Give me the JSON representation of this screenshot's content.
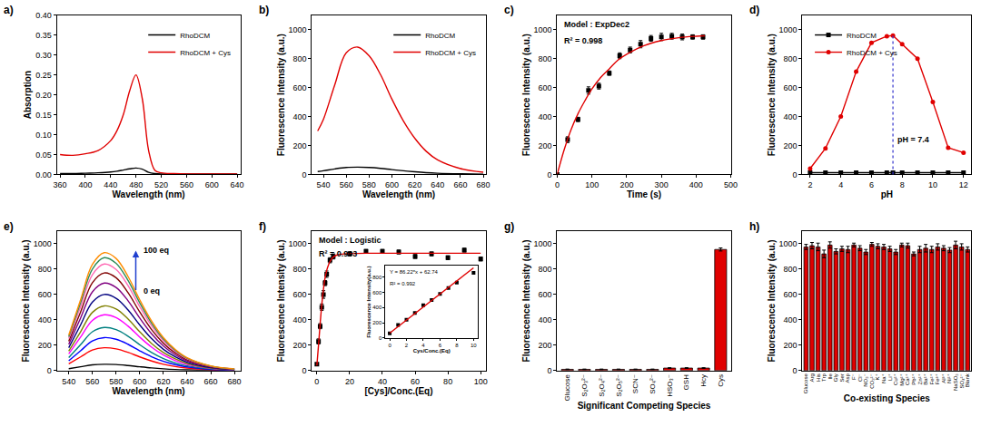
{
  "chart_data": [
    {
      "label": "a)",
      "type": "line",
      "x_label": "Wavelength (nm)",
      "y_label": "Absorption",
      "x": [
        360,
        380,
        400,
        420,
        440,
        450,
        460,
        470,
        480,
        490,
        500,
        510,
        520,
        540,
        560,
        600,
        640
      ],
      "series": [
        {
          "name": "RhoDCM",
          "color": "#000000",
          "values": [
            0.002,
            0.002,
            0.003,
            0.004,
            0.006,
            0.008,
            0.011,
            0.014,
            0.016,
            0.013,
            0.005,
            0.002,
            0.001,
            0.001,
            0.001,
            0.001,
            0.001
          ]
        },
        {
          "name": "RhoDCM + Cys",
          "color": "#e00000",
          "values": [
            0.05,
            0.048,
            0.052,
            0.06,
            0.085,
            0.11,
            0.15,
            0.21,
            0.25,
            0.19,
            0.06,
            0.01,
            0.004,
            0.002,
            0.001,
            0.001,
            0.001
          ]
        }
      ],
      "xlim": [
        355,
        645
      ],
      "xticks": [
        360,
        400,
        440,
        480,
        520,
        560,
        600,
        640
      ],
      "ylim": [
        0,
        0.4
      ],
      "yticks": [
        {
          "value": 0,
          "label": "0.00"
        },
        {
          "value": 0.05,
          "label": "0.05"
        },
        {
          "value": 0.1,
          "label": "0.10"
        },
        {
          "value": 0.15,
          "label": "0.15"
        },
        {
          "value": 0.2,
          "label": "0.20"
        },
        {
          "value": 0.25,
          "label": "0.25"
        },
        {
          "value": 0.3,
          "label": "0.30"
        },
        {
          "value": 0.35,
          "label": "0.35"
        },
        {
          "value": 0.4,
          "label": "0.40"
        }
      ],
      "legend": "upper right",
      "grid": false
    },
    {
      "label": "b)",
      "type": "line",
      "x_label": "Wavelength (nm)",
      "y_label": "Fluorescence Intensity (a.u.)",
      "x": [
        535,
        540,
        550,
        560,
        570,
        580,
        590,
        600,
        610,
        620,
        630,
        640,
        660,
        680
      ],
      "series": [
        {
          "name": "RhoDCM",
          "color": "#000000",
          "values": [
            20,
            25,
            38,
            48,
            50,
            48,
            42,
            33,
            25,
            18,
            12,
            8,
            4,
            2
          ]
        },
        {
          "name": "RhoDCM + Cys",
          "color": "#e00000",
          "values": [
            300,
            380,
            620,
            840,
            880,
            820,
            690,
            520,
            370,
            250,
            160,
            100,
            40,
            15
          ]
        }
      ],
      "xlim": [
        530,
        682
      ],
      "xticks": [
        540,
        560,
        580,
        600,
        620,
        640,
        660,
        680
      ],
      "ylim": [
        0,
        1100
      ],
      "yticks": [
        0,
        200,
        400,
        600,
        800,
        1000
      ],
      "legend": "upper right",
      "grid": false
    },
    {
      "label": "c)",
      "type": "scatter",
      "x_label": "Time (s)",
      "y_label": "Fluorescence Intensity (a.u.)",
      "annotations": [
        "Model : ExpDec2",
        "R² = 0.998"
      ],
      "series": [
        {
          "type": "scatter",
          "color": "#000000",
          "marker": "square",
          "x": [
            0,
            30,
            60,
            90,
            120,
            150,
            180,
            210,
            240,
            270,
            300,
            330,
            360,
            390,
            420
          ],
          "values": [
            0,
            240,
            380,
            580,
            610,
            700,
            820,
            860,
            900,
            940,
            950,
            955,
            950,
            950,
            950
          ],
          "errors": [
            5,
            20,
            15,
            25,
            20,
            15,
            20,
            20,
            25,
            20,
            25,
            20,
            20,
            15,
            15
          ]
        },
        {
          "type": "line",
          "color": "#e00000",
          "x": [
            0,
            20,
            40,
            60,
            80,
            100,
            125,
            150,
            175,
            200,
            250,
            300,
            350,
            400,
            425
          ],
          "values": [
            0,
            170,
            310,
            420,
            510,
            590,
            670,
            730,
            790,
            830,
            890,
            925,
            945,
            955,
            958
          ]
        }
      ],
      "xlim": [
        0,
        500
      ],
      "xticks": [
        0,
        100,
        200,
        300,
        400,
        500
      ],
      "ylim": [
        0,
        1100
      ],
      "yticks": [
        0,
        200,
        400,
        600,
        800,
        1000
      ],
      "grid": false
    },
    {
      "label": "d)",
      "type": "line",
      "x_label": "pH",
      "y_label": "Fluorescence Intensity (a.u.)",
      "x": [
        2,
        3,
        4,
        5,
        6,
        7,
        7.4,
        8,
        9,
        10,
        11,
        12
      ],
      "series": [
        {
          "name": "RhoDCM",
          "color": "#000000",
          "marker": "square",
          "line_style": "solid",
          "values": [
            12,
            12,
            12,
            12,
            12,
            12,
            12,
            12,
            12,
            12,
            12,
            12
          ]
        },
        {
          "name": "RhoDCM + Cys",
          "color": "#e00000",
          "marker": "circle",
          "line_style": "solid",
          "values": [
            40,
            180,
            400,
            710,
            910,
            955,
            960,
            900,
            800,
            500,
            185,
            150
          ]
        }
      ],
      "vline": 7.4,
      "vline_color": "#3333cc",
      "annotations": [
        "pH = 7.4"
      ],
      "xlim": [
        1.5,
        12.5
      ],
      "xticks": [
        2,
        4,
        6,
        8,
        10,
        12
      ],
      "ylim": [
        0,
        1100
      ],
      "yticks": [
        0,
        200,
        400,
        600,
        800,
        1000
      ],
      "legend": "upper left",
      "grid": false
    },
    {
      "label": "e)",
      "type": "line",
      "x_label": "Wavelength (nm)",
      "y_label": "Fluorescence Intensity (a.u.)",
      "arrow_labels": {
        "from": "0 eq",
        "to": "100 eq"
      },
      "arrow_color": "#1f3fcf",
      "x": [
        540,
        550,
        560,
        570,
        580,
        590,
        600,
        610,
        620,
        630,
        640,
        660,
        680
      ],
      "series": [
        {
          "color": "#000000",
          "values": [
            15,
            30,
            45,
            50,
            48,
            40,
            30,
            21,
            14,
            9,
            6,
            2,
            1
          ]
        },
        {
          "color": "#ff0000",
          "values": [
            54,
            108,
            162,
            180,
            171,
            144,
            108,
            76,
            50,
            32,
            20,
            7,
            3
          ]
        },
        {
          "color": "#0000ff",
          "values": [
            78,
            156,
            234,
            260,
            247,
            208,
            156,
            109,
            73,
            47,
            29,
            10,
            4
          ]
        },
        {
          "color": "#008080",
          "values": [
            102,
            204,
            306,
            340,
            323,
            272,
            204,
            143,
            95,
            61,
            37,
            14,
            5
          ]
        },
        {
          "color": "#ff00ff",
          "values": [
            132,
            264,
            396,
            440,
            418,
            352,
            264,
            185,
            123,
            79,
            48,
            18,
            7
          ]
        },
        {
          "color": "#808000",
          "values": [
            153,
            306,
            459,
            510,
            485,
            408,
            306,
            214,
            143,
            92,
            56,
            20,
            8
          ]
        },
        {
          "color": "#000080",
          "values": [
            180,
            360,
            540,
            600,
            570,
            480,
            360,
            252,
            168,
            108,
            66,
            24,
            9
          ]
        },
        {
          "color": "#800080",
          "values": [
            207,
            414,
            621,
            690,
            656,
            552,
            414,
            290,
            193,
            124,
            76,
            28,
            10
          ]
        },
        {
          "color": "#800000",
          "values": [
            231,
            462,
            693,
            770,
            732,
            616,
            462,
            323,
            216,
            139,
            85,
            31,
            12
          ]
        },
        {
          "color": "#ff69b4",
          "values": [
            252,
            504,
            756,
            840,
            798,
            672,
            504,
            353,
            235,
            151,
            92,
            34,
            13
          ]
        },
        {
          "color": "#2e8b57",
          "values": [
            267,
            534,
            801,
            890,
            846,
            712,
            534,
            374,
            249,
            160,
            98,
            36,
            13
          ]
        },
        {
          "color": "#ff8c00",
          "values": [
            279,
            558,
            837,
            930,
            884,
            744,
            558,
            391,
            260,
            167,
            102,
            37,
            14
          ]
        }
      ],
      "xlim": [
        530,
        685
      ],
      "xticks": [
        540,
        560,
        580,
        600,
        620,
        640,
        660,
        680
      ],
      "ylim": [
        0,
        1100
      ],
      "yticks": [
        0,
        200,
        400,
        600,
        800,
        1000
      ],
      "grid": false
    },
    {
      "label": "f)",
      "type": "scatter",
      "x_label": "[Cys]/Conc.(Eq)",
      "y_label": "Fluorescence Intensity (a.u.)",
      "annotations": [
        "Model : Logistic",
        "R² = 0.993"
      ],
      "series": [
        {
          "type": "scatter",
          "color": "#000000",
          "marker": "square",
          "x": [
            0,
            1,
            2,
            3,
            4,
            5,
            6,
            8,
            10,
            20,
            30,
            40,
            50,
            60,
            70,
            80,
            90,
            100
          ],
          "values": [
            50,
            230,
            350,
            500,
            600,
            690,
            760,
            870,
            900,
            920,
            940,
            940,
            935,
            900,
            920,
            890,
            950,
            880
          ],
          "errors": [
            10,
            20,
            20,
            25,
            30,
            20,
            25,
            20,
            20,
            15,
            15,
            15,
            15,
            15,
            15,
            15,
            15,
            15
          ]
        },
        {
          "type": "line",
          "color": "#e00000",
          "x": [
            0,
            1,
            2,
            3,
            4,
            5,
            6,
            7,
            8,
            10,
            12,
            15,
            20,
            30,
            50,
            100
          ],
          "values": [
            40,
            200,
            370,
            520,
            640,
            730,
            790,
            830,
            860,
            895,
            910,
            918,
            922,
            925,
            925,
            925
          ]
        }
      ],
      "xlim": [
        -3,
        103
      ],
      "xticks": [
        0,
        20,
        40,
        60,
        80,
        100
      ],
      "ylim": [
        0,
        1100
      ],
      "yticks": [
        0,
        200,
        400,
        600,
        800,
        1000
      ],
      "grid": false,
      "inset": {
        "type": "scatter",
        "x_label": "Cys/Conc.(Eq)",
        "y_label": "Fluorescence Intensity(a.u.)",
        "annotations": [
          "Y = 86.22*x + 62.74",
          "R² = 0.992"
        ],
        "series": [
          {
            "type": "scatter",
            "color": "#000000",
            "marker": "square",
            "x": [
              0,
              1,
              2,
              3,
              4,
              5,
              6,
              7,
              8,
              10
            ],
            "values": [
              60,
              170,
              240,
              330,
              430,
              500,
              580,
              660,
              730,
              860
            ]
          },
          {
            "type": "line",
            "color": "#e00000",
            "x": [
              0,
              10
            ],
            "values": [
              63,
              925
            ]
          }
        ],
        "xlim": [
          -0.5,
          10.5
        ],
        "xticks": [
          0,
          2,
          4,
          6,
          8,
          10
        ],
        "ylim": [
          0,
          950
        ],
        "yticks": [
          0,
          200,
          400,
          600,
          800
        ],
        "grid": false
      }
    },
    {
      "label": "g)",
      "type": "bar",
      "x_label": "Significant Competing Species",
      "y_label": "Fluorescence Intensity (a.u.)",
      "categories": [
        "Glucose",
        "S₂O₃²⁻",
        "S₂O₄²⁻",
        "S₂O₅²⁻",
        "SCN⁻",
        "SO₄²⁻",
        "HSO₃⁻",
        "GSH",
        "Hcy",
        "Cys"
      ],
      "values": [
        10,
        10,
        10,
        10,
        10,
        10,
        20,
        20,
        20,
        955
      ],
      "errors": [
        2,
        2,
        2,
        2,
        2,
        2,
        3,
        3,
        3,
        12
      ],
      "color": "#e00000",
      "ylim": [
        0,
        1100
      ],
      "yticks": [
        0,
        200,
        400,
        600,
        800,
        1000
      ],
      "grid": false
    },
    {
      "label": "h)",
      "type": "bar",
      "x_label": "Co-existing Species",
      "y_label": "Fluorescence Intensity (a.u.)",
      "categories": [
        "Glucose",
        "Arg",
        "His",
        "Trp",
        "Ile",
        "Gly",
        "Ser",
        "Asp",
        "F⁻",
        "Cl⁻",
        "NO₃⁻",
        "CO₃²⁻",
        "K⁺",
        "Na⁺",
        "Li⁺",
        "Cu²⁺",
        "Mg²⁺",
        "Ca²⁺",
        "Pb²⁺",
        "Zn²⁺",
        "Ba²⁺",
        "Fe²⁺",
        "Fe³⁺",
        "Al³⁺",
        "Ni²⁺",
        "NaSO₃",
        "SO₄²⁻",
        "Blank"
      ],
      "values": [
        975,
        985,
        975,
        920,
        990,
        940,
        960,
        955,
        990,
        965,
        935,
        995,
        980,
        975,
        960,
        935,
        990,
        985,
        920,
        955,
        965,
        955,
        975,
        965,
        950,
        990,
        975,
        955
      ],
      "errors": [
        20,
        25,
        30,
        30,
        25,
        20,
        20,
        25,
        15,
        20,
        20,
        15,
        20,
        20,
        20,
        20,
        15,
        20,
        15,
        25,
        30,
        25,
        25,
        20,
        20,
        30,
        25,
        20
      ],
      "color": "#e00000",
      "ylim": [
        0,
        1100
      ],
      "yticks": [
        0,
        200,
        400,
        600,
        800,
        1000
      ],
      "grid": false
    }
  ]
}
